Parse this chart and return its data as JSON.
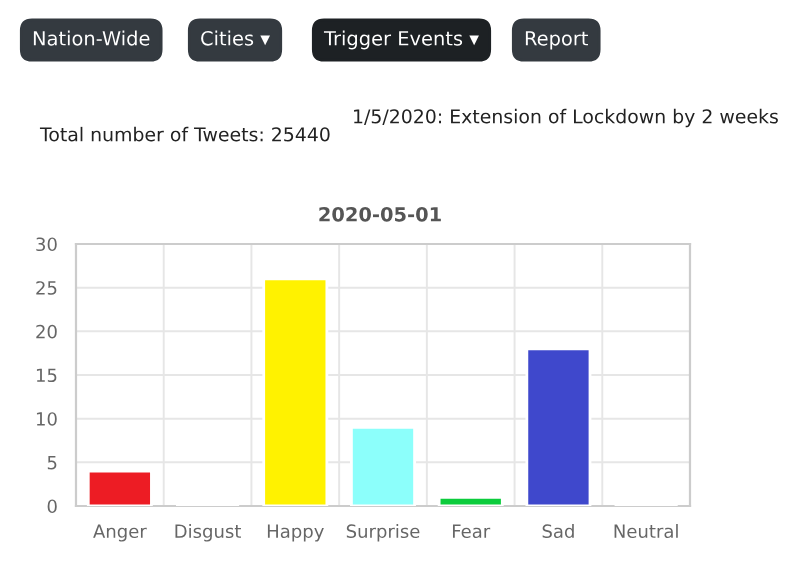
{
  "chart_data": {
    "type": "bar",
    "title": "2020-05-01",
    "categories": [
      "Anger",
      "Disgust",
      "Happy",
      "Surprise",
      "Fear",
      "Sad",
      "Neutral"
    ],
    "values": [
      4,
      0,
      26,
      9,
      1,
      18,
      0
    ],
    "colors": [
      "#ed1c24",
      "#ffffff",
      "#fff200",
      "#8cfffb",
      "#0ccc3c",
      "#3f48cc",
      "#ffffff"
    ],
    "ylim": [
      0,
      30
    ],
    "yticks": [
      0,
      5,
      10,
      15,
      20,
      25,
      30
    ],
    "grid": true,
    "annotations": [
      "Nation-Wide",
      "Cities ▾",
      "Trigger Events ▾",
      "Report",
      "1/5/2020: Extension of Lockdown by 2 weeks",
      "Total number of Tweets: 25440"
    ]
  }
}
